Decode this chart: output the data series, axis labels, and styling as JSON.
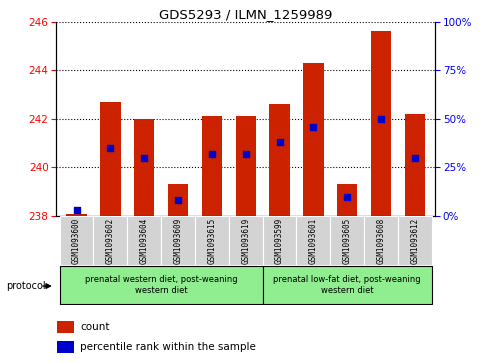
{
  "title": "GDS5293 / ILMN_1259989",
  "samples": [
    "GSM1093600",
    "GSM1093602",
    "GSM1093604",
    "GSM1093609",
    "GSM1093615",
    "GSM1093619",
    "GSM1093599",
    "GSM1093601",
    "GSM1093605",
    "GSM1093608",
    "GSM1093612"
  ],
  "bar_values": [
    238.1,
    242.7,
    242.0,
    239.3,
    242.1,
    242.1,
    242.6,
    244.3,
    239.3,
    245.6,
    242.2
  ],
  "percentile_values": [
    3,
    35,
    30,
    8,
    32,
    32,
    38,
    46,
    10,
    50,
    30
  ],
  "bar_color": "#cc2200",
  "dot_color": "#0000cc",
  "ylim_left": [
    238,
    246
  ],
  "ylim_right": [
    0,
    100
  ],
  "yticks_left": [
    238,
    240,
    242,
    244,
    246
  ],
  "yticks_right": [
    0,
    25,
    50,
    75,
    100
  ],
  "group1_label": "prenatal western diet, post-weaning\nwestern diet",
  "group2_label": "prenatal low-fat diet, post-weaning\nwestern diet",
  "group1_count": 6,
  "group2_count": 5,
  "protocol_label": "protocol",
  "legend_count": "count",
  "legend_percentile": "percentile rank within the sample",
  "bar_width": 0.6,
  "ybase": 238.0,
  "bg_color": "#ffffff",
  "gray_cell": "#d3d3d3",
  "green_cell": "#90ee90"
}
